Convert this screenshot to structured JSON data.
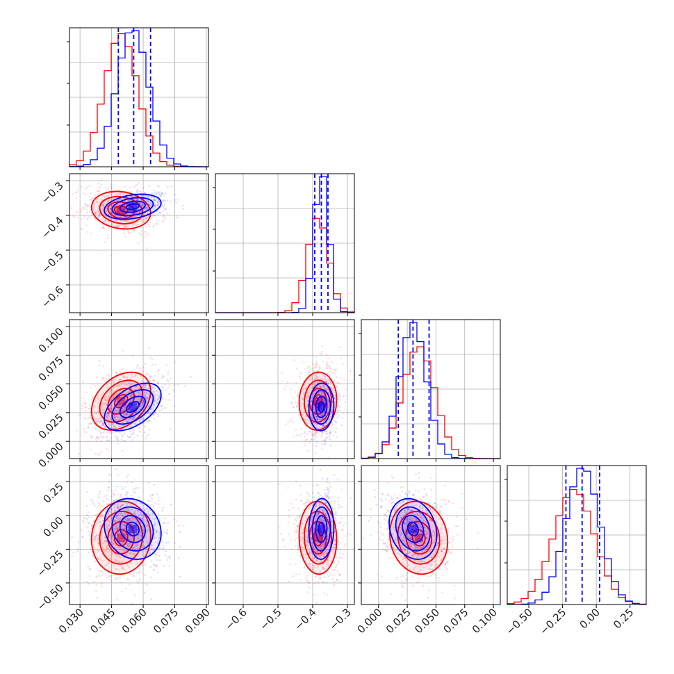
{
  "chart_data": {
    "type": "corner",
    "title": "",
    "parameters": [
      {
        "range": [
          0.025,
          0.091
        ],
        "ticks": [
          0.03,
          0.045,
          0.06,
          0.075,
          0.09
        ],
        "tick_labels": [
          "0.030",
          "0.045",
          "0.060",
          "0.075",
          "0.090"
        ]
      },
      {
        "range": [
          -0.68,
          -0.28
        ],
        "ticks": [
          -0.6,
          -0.5,
          -0.4,
          -0.3
        ],
        "tick_labels": [
          "−0.6",
          "−0.5",
          "−0.4",
          "−0.3"
        ]
      },
      {
        "range": [
          -0.015,
          0.106
        ],
        "ticks": [
          0.0,
          0.025,
          0.05,
          0.075,
          0.1
        ],
        "tick_labels": [
          "0.000",
          "0.025",
          "0.050",
          "0.075",
          "0.100"
        ]
      },
      {
        "range": [
          -0.66,
          0.37
        ],
        "ticks": [
          -0.5,
          -0.25,
          0.0,
          0.25
        ],
        "tick_labels": [
          "−0.50",
          "−0.25",
          "0.00",
          "0.25"
        ]
      }
    ],
    "series": [
      {
        "color": "#ff0000",
        "means": [
          0.0495,
          -0.385,
          0.035,
          -0.165
        ],
        "stds": [
          0.0078,
          0.03,
          0.014,
          0.15
        ],
        "correlations": [
          [
            0,
            1,
            -0.15
          ],
          [
            0,
            2,
            0.35
          ],
          [
            0,
            3,
            0.05
          ],
          [
            1,
            2,
            0.05
          ],
          [
            1,
            3,
            -0.05
          ],
          [
            2,
            3,
            -0.1
          ]
        ]
      },
      {
        "color": "#0000ff",
        "means": [
          0.055,
          -0.375,
          0.03,
          -0.1
        ],
        "stds": [
          0.0075,
          0.02,
          0.0115,
          0.125
        ],
        "correlations": [
          [
            0,
            1,
            0.3
          ],
          [
            0,
            2,
            0.5
          ],
          [
            0,
            3,
            -0.15
          ],
          [
            1,
            2,
            0.05
          ],
          [
            1,
            3,
            0.05
          ],
          [
            2,
            3,
            -0.2
          ]
        ]
      }
    ],
    "quantile_lines": {
      "color": "#0000ff",
      "style": "dashed",
      "values": [
        [
          0.0482,
          0.0555,
          0.0635
        ],
        [
          -0.394,
          -0.375,
          -0.356
        ],
        [
          0.0172,
          0.03,
          0.044
        ],
        [
          -0.225,
          -0.105,
          0.025
        ]
      ]
    },
    "grid": true
  }
}
